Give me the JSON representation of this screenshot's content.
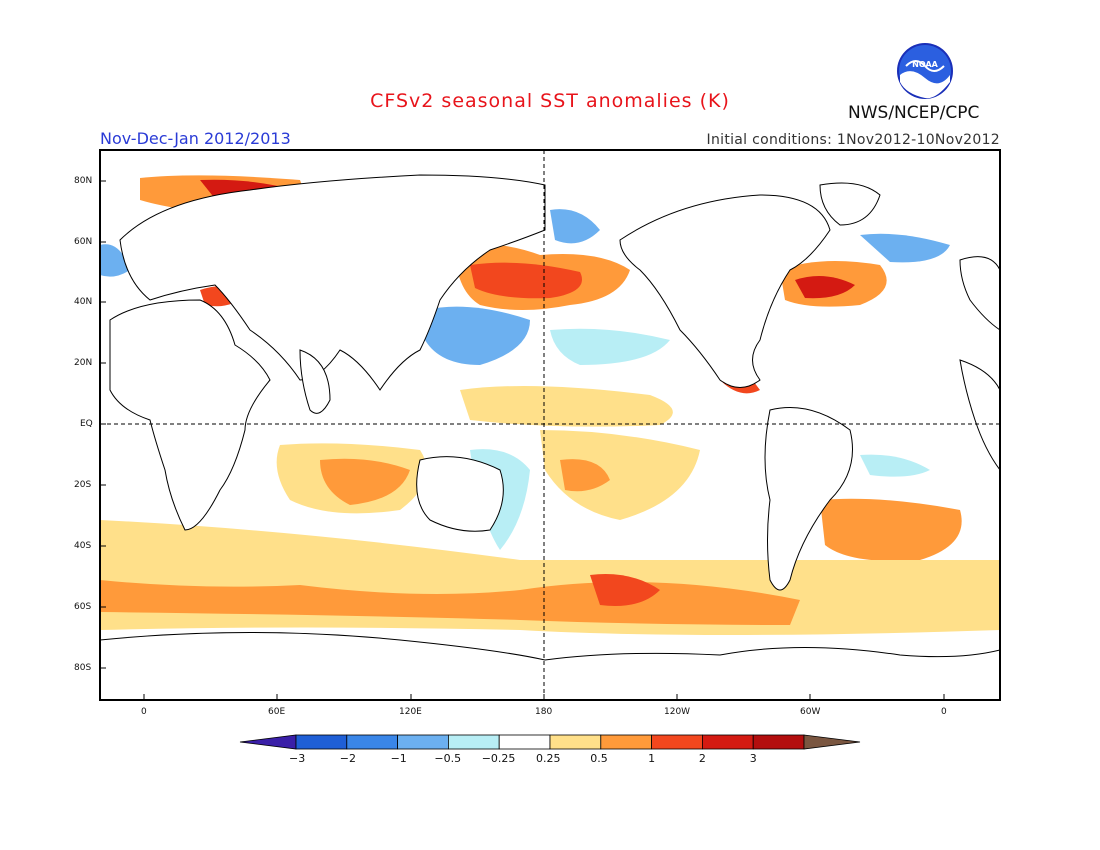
{
  "header": {
    "title": "CFSv2 seasonal SST anomalies (K)",
    "period": "Nov-Dec-Jan 2012/2013",
    "initial_conditions": "Initial conditions: 1Nov2012-10Nov2012",
    "organization": "NWS/NCEP/CPC",
    "logo_text": "NOAA"
  },
  "axes": {
    "lat_labels": [
      "80N",
      "60N",
      "40N",
      "20N",
      "EQ",
      "20S",
      "40S",
      "60S",
      "80S"
    ],
    "lon_labels": [
      "0",
      "60E",
      "120E",
      "180",
      "120W",
      "60W",
      "0"
    ]
  },
  "colorbar": {
    "labels": [
      "-3",
      "-2",
      "-1",
      "-0.5",
      "-0.25",
      "0.25",
      "0.5",
      "1",
      "2",
      "3"
    ],
    "colors": [
      "#3a1fa8",
      "#1f5fd6",
      "#3a86e8",
      "#6cb0f0",
      "#b8eef5",
      "#ffffff",
      "#ffe08a",
      "#ff9a3a",
      "#f2471e",
      "#d41a12",
      "#b30e0e",
      "#7a5640"
    ]
  },
  "colors": {
    "border": "#000000",
    "land_outline": "#000000",
    "title": "#e8141b",
    "period": "#2a3bd6"
  }
}
